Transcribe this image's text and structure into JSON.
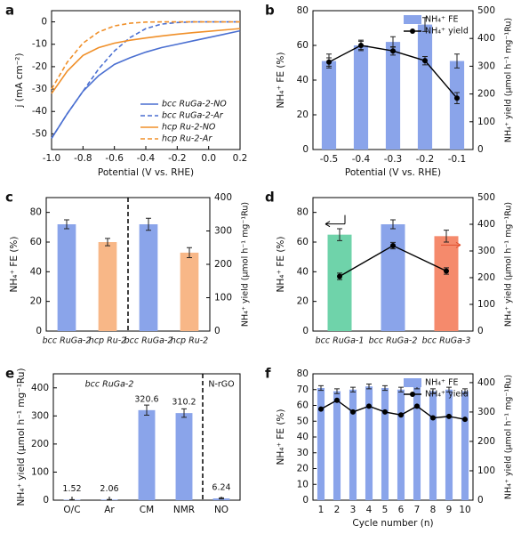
{
  "chart_data": [
    {
      "label": "a",
      "type": "line",
      "x": [
        -1,
        -0.9,
        -0.8,
        -0.7,
        -0.6,
        -0.5,
        -0.4,
        -0.3,
        -0.2,
        -0.1,
        0,
        0.1,
        0.2
      ],
      "xlim": [
        -1,
        0.2
      ],
      "xticks": [
        {
          "value": -1,
          "label": "-1.0"
        },
        -0.8,
        -0.6,
        -0.4,
        -0.2,
        {
          "value": 0,
          "label": "0.0"
        },
        0.2
      ],
      "ylim": [
        -57,
        5
      ],
      "yticks": [
        -50,
        -40,
        -30,
        -20,
        -10,
        0
      ],
      "xlabel": "Potential (V vs. RHE)",
      "ylabel": "j (mA cm⁻²)",
      "legend": "lower right",
      "series": [
        {
          "name": "bcc RuGa-2-NO",
          "color": "#4a6fd1",
          "style": "solid",
          "values": [
            -52,
            -41,
            -31,
            -24,
            -19,
            -16,
            -13.5,
            -11.5,
            -10,
            -8.5,
            -7,
            -5.5,
            -4
          ]
        },
        {
          "name": "bcc RuGa-2-Ar",
          "color": "#4a6fd1",
          "style": "dashed",
          "values": [
            -52,
            -41,
            -31,
            -21,
            -13,
            -7,
            -3,
            -1,
            -0.3,
            0,
            0,
            0,
            0
          ]
        },
        {
          "name": "hcp Ru-2-NO",
          "color": "#f0902a",
          "style": "solid",
          "values": [
            -32,
            -22,
            -15,
            -11.5,
            -9.5,
            -8.2,
            -7.2,
            -6.3,
            -5.5,
            -4.8,
            -4.2,
            -3.6,
            -3
          ]
        },
        {
          "name": "hcp Ru-2-Ar",
          "color": "#f0902a",
          "style": "dashed",
          "values": [
            -30,
            -18,
            -9.5,
            -4.5,
            -1.8,
            -0.6,
            -0.1,
            0,
            0,
            0,
            0,
            0,
            0
          ]
        }
      ]
    },
    {
      "label": "b",
      "type": "bar",
      "categories": [
        "-0.5",
        "-0.4",
        "-0.3",
        "-0.2",
        "-0.1"
      ],
      "ylim": [
        0,
        80
      ],
      "yticks": [
        0,
        20,
        40,
        60,
        80
      ],
      "y2lim": [
        0,
        500
      ],
      "y2ticks": [
        0,
        100,
        200,
        300,
        400,
        500
      ],
      "xlabel": "Potential (V vs. RHE)",
      "ylabel": "NH₄⁺ FE (%)",
      "y2label": "NH₄⁺ yield (μmol h⁻¹ mg⁻¹Ru)",
      "legend": "upper right",
      "series": [
        {
          "name": "NH₄⁺ FE",
          "kind": "bar",
          "color": "#8aa4ea",
          "values": [
            51,
            60,
            62,
            72,
            51
          ],
          "errors": [
            4,
            3,
            3,
            4,
            4
          ]
        },
        {
          "name": "NH₄⁺ yield",
          "kind": "line",
          "axis": "y2",
          "color": "#000000",
          "values": [
            315,
            375,
            355,
            320,
            185
          ],
          "errors": [
            15,
            15,
            15,
            15,
            20
          ]
        }
      ]
    },
    {
      "label": "c",
      "type": "bar",
      "categories": [
        "bcc RuGa-2",
        "hcp Ru-2",
        "bcc RuGa-2",
        "hcp Ru-2"
      ],
      "category_colors": [
        "#3c5fc4",
        "#e8832a",
        "#3c5fc4",
        "#e8832a"
      ],
      "ylim": [
        0,
        90
      ],
      "yticks": [
        0,
        20,
        40,
        60,
        80
      ],
      "y2lim": [
        0,
        400
      ],
      "y2ticks": [
        0,
        100,
        200,
        300,
        400
      ],
      "ylabel": "NH₄⁺ FE (%)",
      "y2label": "NH₄⁺ yield (μmol h⁻¹ mg⁻¹Ru)",
      "series": [
        {
          "kind": "bar",
          "colors": [
            "#8aa4ea",
            "#f8b787",
            null,
            null
          ],
          "values": [
            72,
            60,
            null,
            null
          ],
          "errors": [
            3,
            2.5,
            null,
            null
          ]
        },
        {
          "kind": "bar",
          "axis": "y2",
          "colors": [
            null,
            null,
            "#8aa4ea",
            "#f8b787"
          ],
          "values": [
            null,
            null,
            320,
            235
          ],
          "errors": [
            null,
            null,
            18,
            15
          ]
        }
      ]
    },
    {
      "label": "d",
      "type": "bar",
      "categories": [
        "bcc RuGa-1",
        "bcc RuGa-2",
        "bcc RuGa-3"
      ],
      "category_colors": [
        "#2ea37a",
        "#3c5fc4",
        "#e0502e"
      ],
      "ylim": [
        0,
        90
      ],
      "yticks": [
        0,
        20,
        40,
        60,
        80
      ],
      "y2lim": [
        0,
        500
      ],
      "y2ticks": [
        0,
        100,
        200,
        300,
        400,
        500
      ],
      "ylabel": "NH₄⁺ FE (%)",
      "y2label": "NH₄⁺ yield (μmol h⁻¹ mg⁻¹Ru)",
      "series": [
        {
          "kind": "bar",
          "colors": [
            "#6fd3aa",
            "#8aa4ea",
            "#f58a6c"
          ],
          "values": [
            65,
            72,
            64
          ],
          "errors": [
            4,
            3,
            4
          ]
        },
        {
          "kind": "line",
          "axis": "y2",
          "color": "#000000",
          "values": [
            205,
            320,
            225
          ],
          "errors": [
            12,
            12,
            12
          ]
        }
      ]
    },
    {
      "label": "e",
      "type": "bar",
      "categories": [
        "O/C",
        "Ar",
        "CM",
        "NMR",
        "NO"
      ],
      "ylim": [
        0,
        450
      ],
      "yticks": [
        0,
        100,
        200,
        300,
        400
      ],
      "ylabel": "NH₄⁺ yield (μmol h⁻¹ mg⁻¹Ru)",
      "annotations": [
        "bcc RuGa-2",
        "N-rGO"
      ],
      "value_label_colors": [
        "#3c5fc4",
        "#3c5fc4",
        "#3c5fc4",
        "#3c5fc4",
        "#111111"
      ],
      "series": [
        {
          "kind": "bar",
          "color": "#8aa4ea",
          "values": [
            1.52,
            2.06,
            320.6,
            310.2,
            6.24
          ],
          "errors": [
            0.5,
            0.5,
            18,
            15,
            2
          ],
          "show_values": true
        }
      ]
    },
    {
      "label": "f",
      "type": "bar",
      "categories": [
        "1",
        "2",
        "3",
        "4",
        "5",
        "6",
        "7",
        "8",
        "9",
        "10"
      ],
      "ylim": [
        0,
        80
      ],
      "yticks": [
        0,
        10,
        20,
        30,
        40,
        50,
        60,
        70,
        80
      ],
      "y2lim": [
        0,
        430
      ],
      "y2ticks": [
        0,
        100,
        200,
        300,
        400
      ],
      "xlabel": "Cycle number (n)",
      "ylabel": "NH₄⁺ FE (%)",
      "y2label": "NH₄⁺ yield (μmol h⁻¹ mg⁻¹Ru)",
      "legend": "upper right",
      "series": [
        {
          "name": "NH₄⁺ FE",
          "kind": "bar",
          "color": "#8aa4ea",
          "values": [
            71,
            69,
            70,
            72,
            71,
            70,
            72,
            69,
            70,
            69
          ],
          "errors": [
            1.5,
            1.5,
            1.5,
            1.5,
            1.5,
            1.5,
            1.5,
            1.5,
            1.5,
            1.5
          ]
        },
        {
          "name": "NH₄⁺ yield",
          "kind": "line",
          "axis": "y2",
          "color": "#000000",
          "values": [
            310,
            340,
            300,
            320,
            300,
            290,
            320,
            280,
            285,
            275
          ]
        }
      ]
    }
  ]
}
